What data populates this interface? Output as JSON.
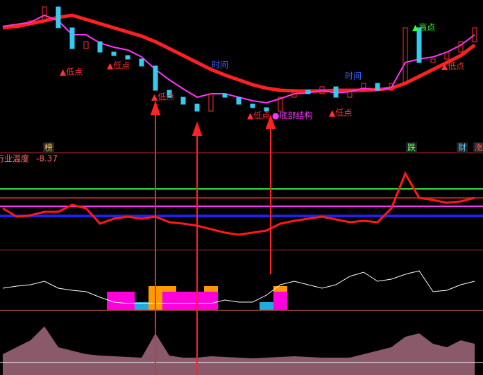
{
  "chart_data": [
    {
      "type": "price",
      "series": [
        {
          "color": "#ff3333",
          "values": [
            150,
            155,
            160,
            180,
            150,
            120,
            130,
            115,
            110,
            105,
            95,
            60,
            50,
            40,
            30,
            55,
            50,
            40,
            35,
            30,
            50,
            60,
            55,
            65,
            50,
            60,
            70,
            60,
            70,
            150,
            100,
            105,
            115,
            130,
            150
          ]
        },
        {
          "color": "#ff2020",
          "values": [
            150,
            152,
            156,
            160,
            165,
            168,
            162,
            156,
            150,
            144,
            138,
            130,
            120,
            110,
            100,
            90,
            82,
            75,
            68,
            63,
            60,
            59,
            59,
            59,
            60,
            60,
            60,
            61,
            63,
            70,
            80,
            90,
            100,
            110,
            125
          ]
        },
        {
          "color": "#ff33ff",
          "values": [
            152,
            155,
            158,
            168,
            160,
            140,
            140,
            128,
            122,
            118,
            108,
            90,
            75,
            62,
            50,
            55,
            55,
            50,
            45,
            42,
            48,
            55,
            56,
            60,
            56,
            58,
            63,
            60,
            64,
            100,
            105,
            108,
            115,
            125,
            140
          ]
        }
      ],
      "ylim": [
        0,
        190
      ],
      "annotations": [
        {
          "text": "▲低点",
          "color": "#ff3333"
        },
        {
          "text": "▲低点",
          "color": "#ff3333"
        },
        {
          "text": "时间",
          "color": "#3366ff"
        },
        {
          "text": "▲低点",
          "color": "#ff3333"
        },
        {
          "text": "▲低点",
          "color": "#ff3333"
        },
        {
          "text": "●底部结构",
          "color": "#ff33ff"
        },
        {
          "text": "▲低点",
          "color": "#ff3333"
        },
        {
          "text": "时间",
          "color": "#3366ff"
        },
        {
          "text": "▲高点",
          "color": "#33ff33"
        },
        {
          "text": "▲低点",
          "color": "#ff3333"
        }
      ]
    },
    {
      "type": "line",
      "title": "行业温度",
      "value_label": "-8.37",
      "markers": [
        {
          "text": "榜",
          "color": "#ffcc66"
        },
        {
          "text": "跌",
          "color": "#66ff66"
        },
        {
          "text": "财",
          "color": "#66ccff"
        },
        {
          "text": "涨",
          "color": "#ff6666"
        }
      ],
      "levels": [
        {
          "value": 88,
          "color": "#33dd33"
        },
        {
          "value": 75,
          "color": "#aa2222"
        },
        {
          "value": 63,
          "color": "#ff33ff"
        },
        {
          "value": 49,
          "color": "#2222ee"
        }
      ],
      "series": [
        {
          "color": "#ff1a1a",
          "values": [
            60,
            48,
            50,
            55,
            55,
            65,
            60,
            38,
            45,
            48,
            45,
            48,
            40,
            38,
            35,
            30,
            25,
            22,
            25,
            28,
            38,
            42,
            45,
            48,
            44,
            40,
            42,
            40,
            60,
            110,
            75,
            72,
            68,
            70,
            75
          ]
        }
      ],
      "ylim": [
        0,
        140
      ]
    },
    {
      "type": "signal",
      "series": [
        {
          "color": "#ffffff",
          "values": [
            32,
            35,
            37,
            42,
            32,
            29,
            27,
            19,
            12,
            10,
            10,
            10,
            10,
            10,
            10,
            10,
            15,
            12,
            12,
            22,
            37,
            42,
            37,
            32,
            37,
            49,
            55,
            42,
            45,
            52,
            57,
            27,
            29,
            37,
            42
          ]
        },
        {
          "color": "#22aadd",
          "values": [
            null,
            null,
            null,
            null,
            null,
            null,
            null,
            null,
            12,
            12,
            12,
            null,
            null,
            null,
            null,
            null,
            null,
            null,
            null,
            12,
            null,
            null,
            null,
            null,
            null,
            null,
            null,
            null,
            null,
            null,
            null,
            null,
            null,
            null,
            null
          ]
        },
        {
          "color": "#ff9900",
          "values": [
            null,
            null,
            null,
            null,
            null,
            null,
            null,
            null,
            null,
            null,
            null,
            35,
            35,
            null,
            null,
            35,
            null,
            null,
            null,
            null,
            35,
            null,
            null,
            null,
            null,
            null,
            null,
            null,
            null,
            null,
            null,
            null,
            null,
            null,
            null
          ]
        },
        {
          "color": "#ff00dd",
          "values": [
            null,
            null,
            null,
            null,
            null,
            null,
            null,
            null,
            27,
            27,
            null,
            null,
            27,
            27,
            27,
            27,
            null,
            null,
            null,
            null,
            27,
            null,
            null,
            null,
            null,
            null,
            null,
            null,
            null,
            null,
            null,
            null,
            null,
            null,
            null
          ]
        }
      ],
      "ylim": [
        0,
        87
      ]
    },
    {
      "type": "area",
      "series": [
        {
          "color": "#8a5a6a",
          "values": [
            30,
            40,
            50,
            70,
            40,
            35,
            30,
            28,
            27,
            26,
            25,
            60,
            28,
            25,
            25,
            27,
            26,
            25,
            24,
            25,
            26,
            27,
            26,
            25,
            25,
            25,
            30,
            35,
            40,
            55,
            60,
            45,
            40,
            50,
            45
          ]
        }
      ],
      "baseline": 18,
      "ylim": [
        0,
        90
      ]
    }
  ]
}
